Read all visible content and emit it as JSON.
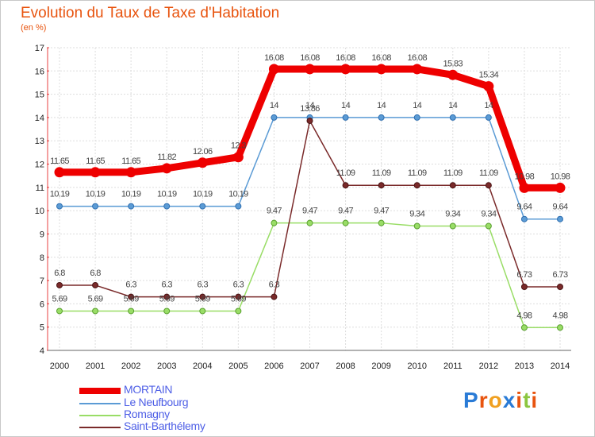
{
  "header": {
    "title": "Evolution du Taux de Taxe d'Habitation",
    "unit": "(en %)"
  },
  "chart_data": {
    "type": "line",
    "title": "Evolution du Taux de Taxe d'Habitation",
    "ylabel": "(en %)",
    "xlabel": "",
    "x": [
      "2000",
      "2001",
      "2002",
      "2003",
      "2004",
      "2005",
      "2006",
      "2007",
      "2008",
      "2009",
      "2010",
      "2011",
      "2012",
      "2013",
      "2014"
    ],
    "ylim": [
      4,
      17
    ],
    "yticks": [
      "4",
      "5",
      "6",
      "7",
      "8",
      "9",
      "10",
      "11",
      "12",
      "13",
      "14",
      "15",
      "16",
      "17"
    ],
    "grid": true,
    "legend_position": "bottom-left",
    "series": [
      {
        "name": "MORTAIN",
        "color": "#ee0000",
        "values": [
          11.65,
          11.65,
          11.65,
          11.82,
          12.06,
          12.3,
          16.08,
          16.08,
          16.08,
          16.08,
          16.08,
          15.83,
          15.34,
          10.98,
          10.98
        ],
        "labels": [
          "11.65",
          "11.65",
          "11.65",
          "11.82",
          "12.06",
          "12.3",
          "16.08",
          "16.08",
          "16.08",
          "16.08",
          "16.08",
          "15.83",
          "15.34",
          "10.98",
          "10.98"
        ]
      },
      {
        "name": "Le Neufbourg",
        "color": "#5b9bd5",
        "values": [
          10.19,
          10.19,
          10.19,
          10.19,
          10.19,
          10.19,
          14,
          14,
          14,
          14,
          14,
          14,
          14,
          9.64,
          9.64
        ],
        "labels": [
          "10.19",
          "10.19",
          "10.19",
          "10.19",
          "10.19",
          "10.19",
          "14",
          "14",
          "14",
          "14",
          "14",
          "14",
          "14",
          "9.64",
          "9.64"
        ]
      },
      {
        "name": "Romagny",
        "color": "#99dd66",
        "values": [
          5.69,
          5.69,
          5.69,
          5.69,
          5.69,
          5.69,
          9.47,
          9.47,
          9.47,
          9.47,
          9.34,
          9.34,
          9.34,
          4.98,
          4.98
        ],
        "labels": [
          "5.69",
          "5.69",
          "5.69",
          "5.69",
          "5.69",
          "5.69",
          "9.47",
          "9.47",
          "9.47",
          "9.47",
          "9.34",
          "9.34",
          "9.34",
          "4.98",
          "4.98"
        ]
      },
      {
        "name": "Saint-Barthélemy",
        "color": "#7a2a2a",
        "values": [
          6.8,
          6.8,
          6.3,
          6.3,
          6.3,
          6.3,
          6.3,
          13.86,
          11.09,
          11.09,
          11.09,
          11.09,
          11.09,
          6.73,
          6.73
        ],
        "labels": [
          "6.8",
          "6.8",
          "6.3",
          "6.3",
          "6.3",
          "6.3",
          "6.3",
          "13.86",
          "11.09",
          "11.09",
          "11.09",
          "11.09",
          "11.09",
          "6.73",
          "6.73"
        ]
      }
    ]
  },
  "legend": {
    "items": [
      {
        "label": "MORTAIN",
        "color": "#ee0000"
      },
      {
        "label": "Le Neufbourg",
        "color": "#5b9bd5"
      },
      {
        "label": "Romagny",
        "color": "#99dd66"
      },
      {
        "label": "Saint-Barthélemy",
        "color": "#7a2a2a"
      }
    ]
  },
  "brand": {
    "text": "Proxiti",
    "letter_colors": [
      "#2a7bd6",
      "#e8540f",
      "#f0a020",
      "#2a7bd6",
      "#e8540f",
      "#8cc63f",
      "#e8540f"
    ]
  }
}
